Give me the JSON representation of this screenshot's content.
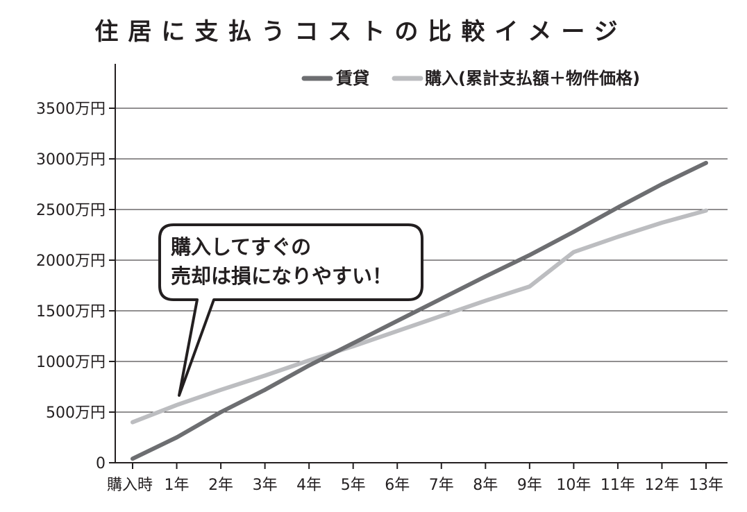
{
  "chart_data": {
    "type": "line",
    "title": "住居に支払うコストの比較イメージ",
    "categories": [
      "購入時",
      "1年",
      "2年",
      "3年",
      "4年",
      "5年",
      "6年",
      "7年",
      "8年",
      "9年",
      "10年",
      "11年",
      "12年",
      "13年"
    ],
    "y_ticks": [
      {
        "value": 0,
        "label": "0"
      },
      {
        "value": 500,
        "label": "500万円"
      },
      {
        "value": 1000,
        "label": "1000万円"
      },
      {
        "value": 1500,
        "label": "1500万円"
      },
      {
        "value": 2000,
        "label": "2000万円"
      },
      {
        "value": 2500,
        "label": "2500万円"
      },
      {
        "value": 3000,
        "label": "3000万円"
      },
      {
        "value": 3500,
        "label": "3500万円"
      }
    ],
    "ylim": [
      0,
      3500
    ],
    "grid": true,
    "legend_position": "top-right",
    "series": [
      {
        "name": "賃貸",
        "color": "#6d6e71",
        "values": [
          40,
          250,
          500,
          720,
          960,
          1180,
          1400,
          1620,
          1840,
          2050,
          2280,
          2520,
          2750,
          2960
        ]
      },
      {
        "name": "購入(累計支払額＋物件価格)",
        "color": "#bcbdc0",
        "values": [
          400,
          570,
          720,
          860,
          1010,
          1150,
          1300,
          1450,
          1600,
          1740,
          2080,
          2230,
          2370,
          2490
        ]
      }
    ],
    "annotation": {
      "lines": [
        "購入してすぐの",
        "売却は損になりやすい！"
      ]
    }
  }
}
